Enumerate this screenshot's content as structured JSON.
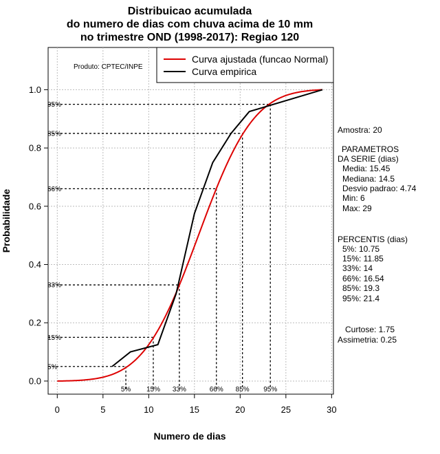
{
  "chart_data": {
    "type": "line",
    "title": [
      "Distribuicao acumulada",
      "do numero de dias com chuva acima de 10 mm",
      "no trimestre OND (1998-2017): Regiao 120"
    ],
    "xlabel": "Numero de dias",
    "ylabel": "Probabilidade",
    "xlim": [
      -1,
      30.2
    ],
    "ylim": [
      -0.045,
      1.145
    ],
    "xticks": [
      0,
      5,
      10,
      15,
      20,
      25,
      30
    ],
    "yticks": [
      0.0,
      0.2,
      0.4,
      0.6,
      0.8,
      1.0
    ],
    "xtick_labels": [
      "0",
      "5",
      "10",
      "15",
      "20",
      "25",
      "30"
    ],
    "ytick_labels": [
      "0.0",
      "0.2",
      "0.4",
      "0.6",
      "0.8",
      "1.0"
    ],
    "grid": true,
    "product_label": "Produto: CPTEC/INPE",
    "legend": {
      "position": "top-right",
      "entries": [
        {
          "label": "Curva ajustada (funcao Normal)",
          "color": "#dd0000"
        },
        {
          "label": "Curva empirica",
          "color": "#000000"
        }
      ]
    },
    "fitted_normal": {
      "mean": 15.45,
      "sd": 4.74,
      "x_range": [
        0,
        29
      ],
      "color": "#dd0000"
    },
    "series": [
      {
        "name": "Curva empirica",
        "color": "#000000",
        "x": [
          6,
          8,
          11,
          13,
          15,
          17,
          19,
          21,
          29
        ],
        "y": [
          0.05,
          0.1,
          0.125,
          0.3,
          0.575,
          0.75,
          0.85,
          0.925,
          1.0
        ]
      }
    ],
    "percentiles": [
      {
        "label": "5%",
        "prob": 0.05,
        "value": 7.5
      },
      {
        "label": "15%",
        "prob": 0.15,
        "value": 10.5
      },
      {
        "label": "33%",
        "prob": 0.33,
        "value": 13.35
      },
      {
        "label": "66%",
        "prob": 0.66,
        "value": 17.4
      },
      {
        "label": "85%",
        "prob": 0.85,
        "value": 20.25
      },
      {
        "label": "95%",
        "prob": 0.95,
        "value": 23.3
      }
    ]
  },
  "side_panel": {
    "sample": "Amostra: 20",
    "params_header_1": "PARAMETROS",
    "params_header_2": "DA SERIE (dias)",
    "media": "Media: 15.45",
    "mediana": "Mediana: 14.5",
    "desvio": "Desvio padrao: 4.74",
    "min": "Min: 6",
    "max": "Max: 29",
    "percentis_header": "PERCENTIS (dias)",
    "p5": "5%: 10.75",
    "p15": "15%: 11.85",
    "p33": "33%: 14",
    "p66": "66%: 16.54",
    "p85": "85%: 19.3",
    "p95": "95%: 21.4",
    "curtose": "Curtose: 1.75",
    "assimetria": "Assimetria: 0.25"
  }
}
